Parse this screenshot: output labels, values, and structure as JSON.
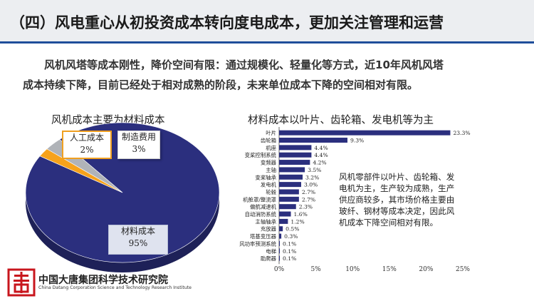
{
  "header": {
    "title": "（四）风电重心从初投资成本转向度电成本，更加关注管理和运营"
  },
  "intro": {
    "line1": "风机风塔等成本刚性，降价空间有限：通过规模化、轻量化等方式，近10年风机风塔",
    "line2": "成本持续下降，目前已经处于相对成熟的阶段，未来单位成本下降的空间相对有限。"
  },
  "chart_data": [
    {
      "type": "pie",
      "title": "风机成本主要为材料成本",
      "slices": [
        {
          "label": "材料成本",
          "value": 95,
          "value_label": "95%",
          "color": "#2b2f7e"
        },
        {
          "label": "人工成本",
          "value": 2,
          "value_label": "2%",
          "color": "#f7a21b"
        },
        {
          "label": "制造费用",
          "value": 3,
          "value_label": "3%",
          "color": "#b0b3b8"
        }
      ]
    },
    {
      "type": "bar",
      "orientation": "horizontal",
      "title": "材料成本以叶片、齿轮箱、发电机等为主",
      "color": "#2b2f7e",
      "categories": [
        "叶片",
        "齿轮箱",
        "机座",
        "变桨控制系统",
        "变频器",
        "主轴",
        "变桨轴承",
        "发电机",
        "轮毂",
        "机舱罩/整流罩",
        "偏航减速机",
        "自动消防系统",
        "主轴轴承",
        "充放器",
        "塔基变压器",
        "风功率预测系统",
        "电梯",
        "助爬器"
      ],
      "values": [
        23.3,
        9.3,
        4.4,
        4.4,
        4.2,
        3.5,
        3.2,
        3.0,
        2.7,
        2.7,
        2.3,
        1.6,
        1.2,
        0.5,
        0.3,
        0.1,
        0.1,
        0.1
      ],
      "value_labels": [
        "23.3%",
        "9.3%",
        "4.4%",
        "4.4%",
        "4.2%",
        "3.5%",
        "3.2%",
        "3.0%",
        "2.7%",
        "2.7%",
        "2.3%",
        "1.6%",
        "1.2%",
        "0.5%",
        "0.3%",
        "0.1%",
        "0.1%",
        "0.1%"
      ],
      "xlim": [
        0,
        25
      ],
      "xticks": [
        "0%",
        "5%",
        "10%",
        "15%",
        "20%",
        "25%"
      ],
      "note": "风机零部件以叶片、齿轮箱、发电机为主，生产较为成熟，生产供应商较多，其市场价格主要由玻纤、钢材等成本决定，因此风机成本下降空间相对有限。"
    }
  ],
  "footer": {
    "org_cn": "中国大唐集团科学技术研究院",
    "org_en": "China Datang Corporation Science and Technology Research Institute",
    "logo_icon": "datang-logo-icon",
    "logo_color": "#c8161d"
  }
}
